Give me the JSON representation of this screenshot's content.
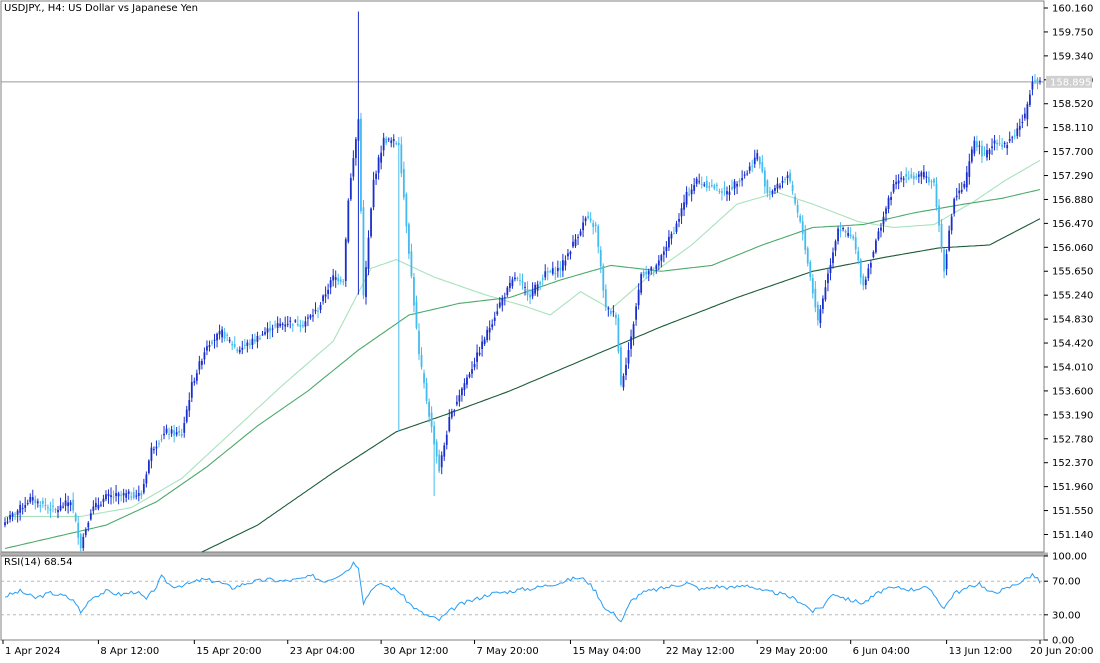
{
  "chart_title": "USDJPY., H4:  US Dollar vs Japanese Yen",
  "rsi_label": "RSI(14) 68.54",
  "current_price_label": "158.895",
  "colors": {
    "bull_candle": "#1a2ecc",
    "bear_candle": "#44bbee",
    "ma_fast": "#a8e2bd",
    "ma_mid": "#4ba96a",
    "ma_slow": "#1b5c36",
    "rsi_line": "#2a9df4",
    "frame": "#808080"
  },
  "chart_data": [
    {
      "type": "candlestick",
      "title": "USDJPY., H4:  US Dollar vs Japanese Yen",
      "ylim": [
        150.84,
        160.28
      ],
      "price_tick_labels": [
        "160.160",
        "159.750",
        "159.340",
        "158.930",
        "158.520",
        "158.110",
        "157.700",
        "157.290",
        "156.880",
        "156.470",
        "156.060",
        "155.650",
        "155.240",
        "154.830",
        "154.420",
        "154.010",
        "153.600",
        "153.190",
        "152.780",
        "152.370",
        "151.960",
        "151.550",
        "151.140"
      ],
      "time_tick_labels": [
        "1 Apr 2024",
        "8 Apr 12:00",
        "15 Apr 20:00",
        "23 Apr 04:00",
        "30 Apr 12:00",
        "7 May 20:00",
        "15 May 04:00",
        "22 May 12:00",
        "29 May 20:00",
        "6 Jun 04:00",
        "13 Jun 12:00",
        "20 Jun 20:00"
      ],
      "current_price": 158.895,
      "close_keypoints": [
        [
          0,
          151.35
        ],
        [
          10,
          151.75
        ],
        [
          20,
          151.55
        ],
        [
          26,
          151.72
        ],
        [
          30,
          150.95
        ],
        [
          34,
          151.55
        ],
        [
          40,
          151.78
        ],
        [
          48,
          151.82
        ],
        [
          54,
          151.82
        ],
        [
          58,
          152.6
        ],
        [
          64,
          152.9
        ],
        [
          70,
          152.85
        ],
        [
          74,
          153.7
        ],
        [
          80,
          154.4
        ],
        [
          86,
          154.6
        ],
        [
          92,
          154.3
        ],
        [
          98,
          154.45
        ],
        [
          106,
          154.7
        ],
        [
          112,
          154.78
        ],
        [
          118,
          154.75
        ],
        [
          124,
          155.0
        ],
        [
          130,
          155.55
        ],
        [
          134,
          155.5
        ],
        [
          136,
          156.9
        ],
        [
          140,
          158.25
        ],
        [
          142,
          155.2
        ],
        [
          146,
          157.2
        ],
        [
          150,
          157.9
        ],
        [
          156,
          157.85
        ],
        [
          160,
          156.0
        ],
        [
          164,
          154.2
        ],
        [
          168,
          153.2
        ],
        [
          172,
          152.25
        ],
        [
          176,
          153.1
        ],
        [
          180,
          153.55
        ],
        [
          186,
          154.1
        ],
        [
          190,
          154.5
        ],
        [
          196,
          155.1
        ],
        [
          202,
          155.55
        ],
        [
          208,
          155.25
        ],
        [
          214,
          155.6
        ],
        [
          220,
          155.7
        ],
        [
          226,
          156.2
        ],
        [
          230,
          156.55
        ],
        [
          234,
          156.4
        ],
        [
          238,
          155.0
        ],
        [
          242,
          154.9
        ],
        [
          244,
          153.7
        ],
        [
          248,
          154.5
        ],
        [
          252,
          155.6
        ],
        [
          258,
          155.7
        ],
        [
          262,
          156.1
        ],
        [
          266,
          156.45
        ],
        [
          270,
          156.95
        ],
        [
          274,
          157.2
        ],
        [
          280,
          157.1
        ],
        [
          286,
          157.0
        ],
        [
          290,
          157.2
        ],
        [
          294,
          157.35
        ],
        [
          298,
          157.65
        ],
        [
          302,
          157.0
        ],
        [
          306,
          157.1
        ],
        [
          310,
          157.3
        ],
        [
          316,
          156.3
        ],
        [
          320,
          155.3
        ],
        [
          322,
          154.8
        ],
        [
          326,
          155.6
        ],
        [
          330,
          156.4
        ],
        [
          336,
          156.2
        ],
        [
          340,
          155.4
        ],
        [
          344,
          156.0
        ],
        [
          348,
          156.6
        ],
        [
          352,
          157.1
        ],
        [
          356,
          157.3
        ],
        [
          360,
          157.25
        ],
        [
          364,
          157.3
        ],
        [
          368,
          157.15
        ],
        [
          372,
          155.7
        ],
        [
          376,
          156.9
        ],
        [
          380,
          157.1
        ],
        [
          384,
          157.9
        ],
        [
          388,
          157.6
        ],
        [
          392,
          157.9
        ],
        [
          396,
          157.8
        ],
        [
          400,
          158.0
        ],
        [
          404,
          158.3
        ],
        [
          407,
          158.95
        ],
        [
          410,
          158.9
        ]
      ],
      "spikes": [
        [
          140,
          160.1,
          155.25
        ],
        [
          156,
          152.9,
          157.95
        ],
        [
          170,
          151.8,
          152.9
        ]
      ],
      "ma_fast_keypoints": [
        [
          0,
          151.45
        ],
        [
          30,
          151.45
        ],
        [
          50,
          151.6
        ],
        [
          70,
          152.1
        ],
        [
          90,
          152.9
        ],
        [
          110,
          153.7
        ],
        [
          130,
          154.45
        ],
        [
          145,
          155.7
        ],
        [
          155,
          155.85
        ],
        [
          170,
          155.55
        ],
        [
          190,
          155.25
        ],
        [
          206,
          155.05
        ],
        [
          216,
          154.9
        ],
        [
          228,
          155.3
        ],
        [
          240,
          155.0
        ],
        [
          256,
          155.6
        ],
        [
          272,
          156.1
        ],
        [
          290,
          156.8
        ],
        [
          306,
          157.0
        ],
        [
          320,
          156.8
        ],
        [
          338,
          156.5
        ],
        [
          352,
          156.4
        ],
        [
          368,
          156.45
        ],
        [
          384,
          156.85
        ],
        [
          396,
          157.2
        ],
        [
          410,
          157.55
        ]
      ],
      "ma_mid_keypoints": [
        [
          0,
          150.9
        ],
        [
          40,
          151.3
        ],
        [
          60,
          151.7
        ],
        [
          80,
          152.3
        ],
        [
          100,
          153.0
        ],
        [
          120,
          153.6
        ],
        [
          140,
          154.3
        ],
        [
          160,
          154.9
        ],
        [
          180,
          155.1
        ],
        [
          200,
          155.2
        ],
        [
          220,
          155.5
        ],
        [
          240,
          155.75
        ],
        [
          260,
          155.65
        ],
        [
          280,
          155.75
        ],
        [
          300,
          156.1
        ],
        [
          320,
          156.4
        ],
        [
          340,
          156.45
        ],
        [
          360,
          156.65
        ],
        [
          380,
          156.8
        ],
        [
          395,
          156.9
        ],
        [
          410,
          157.05
        ]
      ],
      "ma_slow_keypoints": [
        [
          78,
          150.84
        ],
        [
          100,
          151.3
        ],
        [
          130,
          152.2
        ],
        [
          155,
          152.9
        ],
        [
          175,
          153.2
        ],
        [
          200,
          153.6
        ],
        [
          230,
          154.15
        ],
        [
          260,
          154.7
        ],
        [
          290,
          155.2
        ],
        [
          320,
          155.65
        ],
        [
          350,
          155.9
        ],
        [
          370,
          156.05
        ],
        [
          390,
          156.1
        ],
        [
          410,
          156.55
        ]
      ]
    },
    {
      "type": "line",
      "title": "RSI(14) 68.54",
      "ylim": [
        0,
        100
      ],
      "ytick_labels": [
        "100.00",
        "70.00",
        "30.00",
        "0.00"
      ],
      "levels": [
        70,
        30
      ],
      "current_value": 68.54,
      "keypoints": [
        [
          0,
          52
        ],
        [
          6,
          58
        ],
        [
          12,
          50
        ],
        [
          18,
          56
        ],
        [
          24,
          52
        ],
        [
          28,
          45
        ],
        [
          30,
          32
        ],
        [
          34,
          50
        ],
        [
          40,
          58
        ],
        [
          46,
          54
        ],
        [
          52,
          58
        ],
        [
          56,
          48
        ],
        [
          60,
          64
        ],
        [
          62,
          75
        ],
        [
          66,
          64
        ],
        [
          72,
          66
        ],
        [
          78,
          72
        ],
        [
          84,
          70
        ],
        [
          90,
          62
        ],
        [
          96,
          68
        ],
        [
          104,
          72
        ],
        [
          110,
          70
        ],
        [
          116,
          72
        ],
        [
          122,
          76
        ],
        [
          126,
          70
        ],
        [
          130,
          74
        ],
        [
          136,
          84
        ],
        [
          138,
          92
        ],
        [
          140,
          88
        ],
        [
          142,
          45
        ],
        [
          146,
          64
        ],
        [
          150,
          66
        ],
        [
          156,
          58
        ],
        [
          160,
          44
        ],
        [
          164,
          34
        ],
        [
          168,
          28
        ],
        [
          172,
          24
        ],
        [
          176,
          34
        ],
        [
          180,
          42
        ],
        [
          186,
          48
        ],
        [
          192,
          55
        ],
        [
          198,
          57
        ],
        [
          204,
          60
        ],
        [
          210,
          62
        ],
        [
          216,
          66
        ],
        [
          222,
          70
        ],
        [
          226,
          74
        ],
        [
          230,
          72
        ],
        [
          234,
          58
        ],
        [
          238,
          36
        ],
        [
          242,
          30
        ],
        [
          244,
          22
        ],
        [
          248,
          46
        ],
        [
          252,
          56
        ],
        [
          258,
          60
        ],
        [
          264,
          64
        ],
        [
          270,
          68
        ],
        [
          276,
          60
        ],
        [
          282,
          64
        ],
        [
          288,
          62
        ],
        [
          294,
          66
        ],
        [
          300,
          58
        ],
        [
          306,
          56
        ],
        [
          312,
          50
        ],
        [
          316,
          44
        ],
        [
          320,
          34
        ],
        [
          324,
          40
        ],
        [
          328,
          56
        ],
        [
          334,
          48
        ],
        [
          340,
          44
        ],
        [
          344,
          52
        ],
        [
          348,
          60
        ],
        [
          354,
          62
        ],
        [
          360,
          60
        ],
        [
          364,
          64
        ],
        [
          368,
          54
        ],
        [
          372,
          38
        ],
        [
          376,
          56
        ],
        [
          380,
          60
        ],
        [
          386,
          68
        ],
        [
          390,
          56
        ],
        [
          396,
          60
        ],
        [
          400,
          66
        ],
        [
          404,
          72
        ],
        [
          407,
          78
        ],
        [
          410,
          69
        ]
      ]
    }
  ]
}
